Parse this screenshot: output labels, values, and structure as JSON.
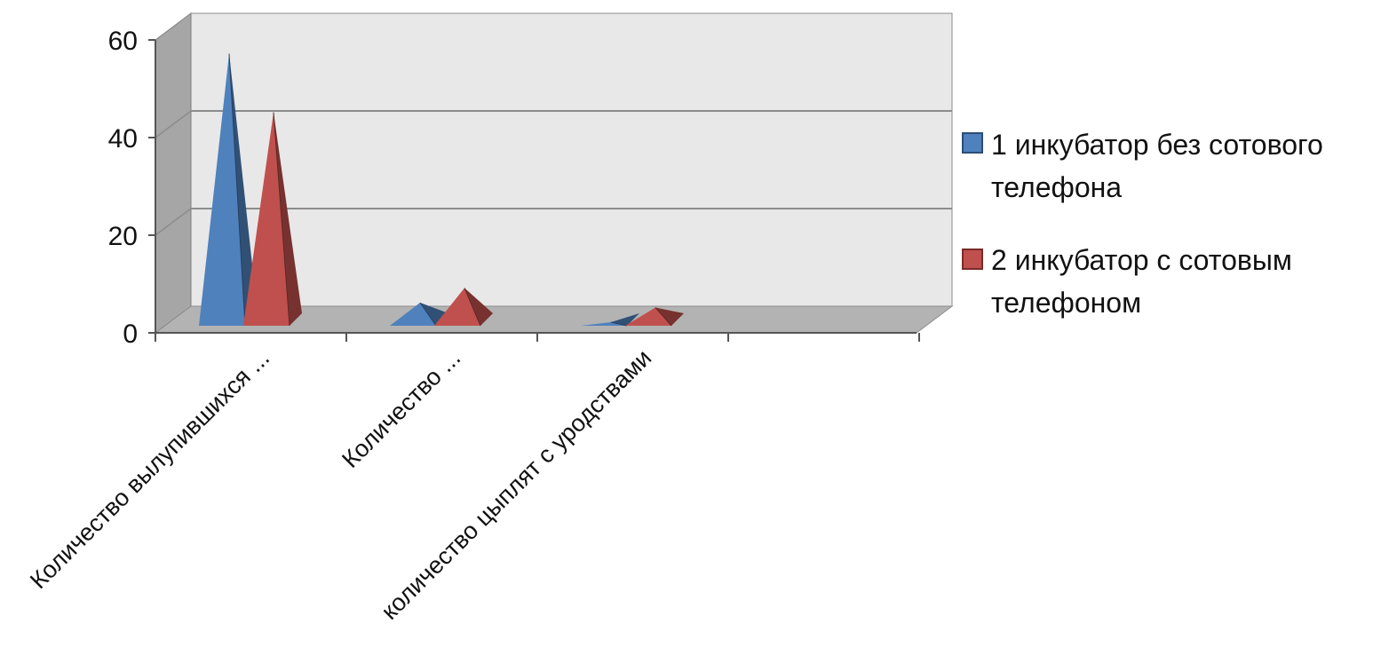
{
  "chart_data": {
    "type": "bar",
    "style": "3d-pyramid",
    "categories": [
      "Количество вылупившихся ...",
      "Количество ...",
      "количество цыплят с уродствами"
    ],
    "series": [
      {
        "name": "1 инкубатор без сотового телефона",
        "values": [
          55,
          4,
          0
        ]
      },
      {
        "name": "2 инкубатор с сотовым телефоном",
        "values": [
          43,
          7,
          3
        ]
      }
    ],
    "ylim": [
      0,
      60
    ],
    "yticks": [
      0,
      20,
      40,
      60
    ],
    "grid": true,
    "legend_position": "right",
    "colors": {
      "series1": "#4f81bd",
      "series2": "#c0504d",
      "wall": "#e8e8e8",
      "side_wall": "#a6a6a6",
      "floor": "#b3b3b3"
    }
  },
  "legend": {
    "items": [
      {
        "line1": "1 инкубатор без сотового",
        "line2": "телефона"
      },
      {
        "line1": "2 инкубатор с сотовым",
        "line2": "телефоном"
      }
    ]
  }
}
